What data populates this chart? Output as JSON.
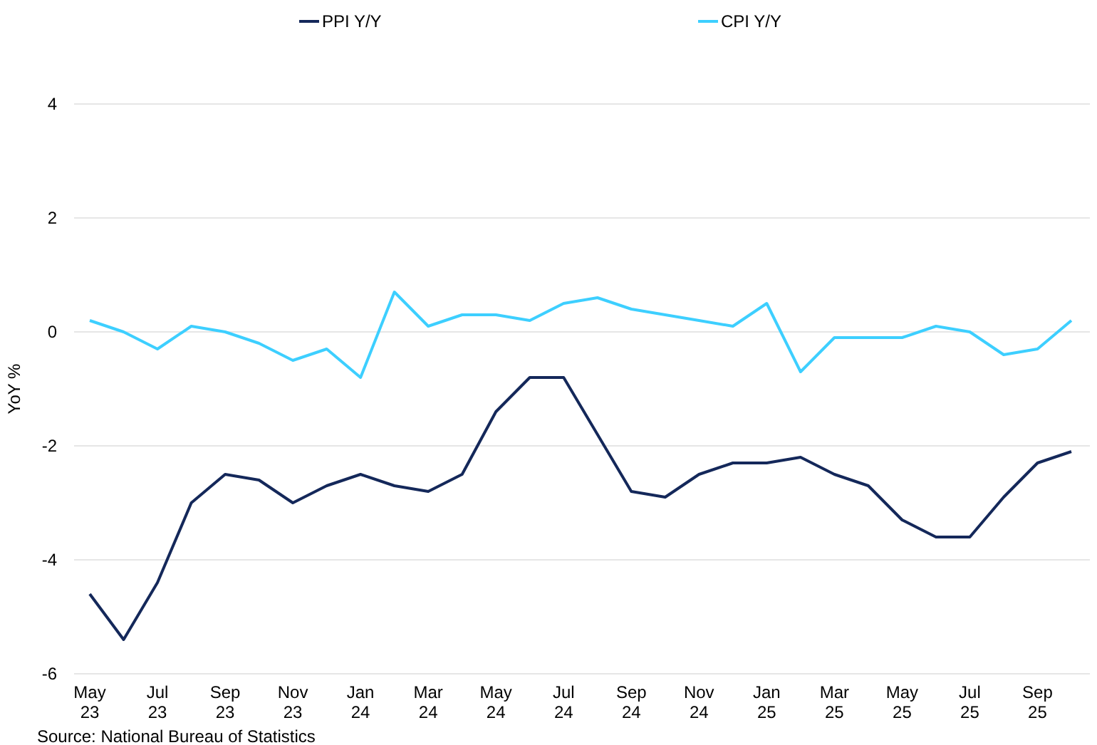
{
  "chart_data": {
    "type": "line",
    "ylabel": "YoY %",
    "annotations": [
      "Source: National Bureau of Statistics"
    ],
    "categories": [
      "May 23",
      null,
      "Jul 23",
      null,
      "Sep 23",
      null,
      "Nov 23",
      null,
      "Jan 24",
      null,
      "Mar 24",
      null,
      "May 24",
      null,
      "Jul 24",
      null,
      "Sep 24",
      null,
      "Nov 24",
      null,
      "Jan 25",
      null,
      "Mar 25",
      null,
      "May 25",
      null,
      "Jul 25",
      null,
      "Sep 25",
      null
    ],
    "series": [
      {
        "name": "PPI Y/Y",
        "color": "#14285a",
        "values": [
          -4.6,
          -5.4,
          -4.4,
          -3.0,
          -2.5,
          -2.6,
          -3.0,
          -2.7,
          -2.5,
          -2.7,
          -2.8,
          -2.5,
          -1.4,
          -0.8,
          -0.8,
          -1.8,
          -2.8,
          -2.9,
          -2.5,
          -2.3,
          -2.3,
          -2.2,
          -2.5,
          -2.7,
          -3.3,
          -3.6,
          -3.6,
          -2.9,
          -2.3,
          -2.1
        ]
      },
      {
        "name": "CPI Y/Y",
        "color": "#3dcfff",
        "values": [
          0.2,
          0.0,
          -0.3,
          0.1,
          0.0,
          -0.2,
          -0.5,
          -0.3,
          -0.8,
          0.7,
          0.1,
          0.3,
          0.3,
          0.2,
          0.5,
          0.6,
          0.4,
          0.3,
          0.2,
          0.1,
          0.5,
          -0.7,
          -0.1,
          -0.1,
          -0.1,
          0.1,
          0.0,
          -0.4,
          -0.3,
          0.2
        ]
      }
    ],
    "ylim": [
      -6,
      4
    ],
    "yticks": [
      -6,
      -4,
      -2,
      0,
      2,
      4
    ],
    "grid": "y",
    "legend": "top",
    "marker": "none",
    "line_style": "solid"
  }
}
